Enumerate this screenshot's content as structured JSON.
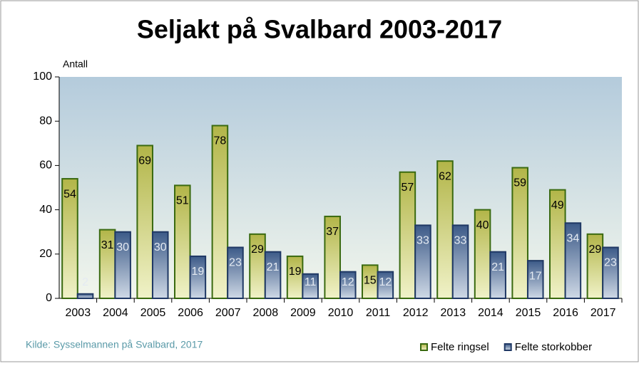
{
  "chart_data": {
    "type": "bar",
    "title": "Seljakt på Svalbard 2003-2017",
    "y_label": "Antall",
    "source": "Kilde: Sysselmannen på Svalbard, 2017",
    "categories": [
      "2003",
      "2004",
      "2005",
      "2006",
      "2007",
      "2008",
      "2009",
      "2010",
      "2011",
      "2012",
      "2013",
      "2014",
      "2015",
      "2016",
      "2017"
    ],
    "series": [
      {
        "name": "Felte ringsel",
        "color": "#8fa020",
        "values": [
          54,
          31,
          69,
          51,
          78,
          29,
          19,
          37,
          15,
          57,
          62,
          40,
          59,
          49,
          29
        ]
      },
      {
        "name": "Felte storkobber",
        "color": "#3d5a8a",
        "values": [
          2,
          30,
          30,
          19,
          23,
          21,
          11,
          12,
          12,
          33,
          33,
          21,
          17,
          34,
          23
        ]
      }
    ],
    "ylim": [
      0,
      100
    ],
    "yticks": [
      0,
      20,
      40,
      60,
      80,
      100
    ],
    "legend": "bottom-right"
  }
}
